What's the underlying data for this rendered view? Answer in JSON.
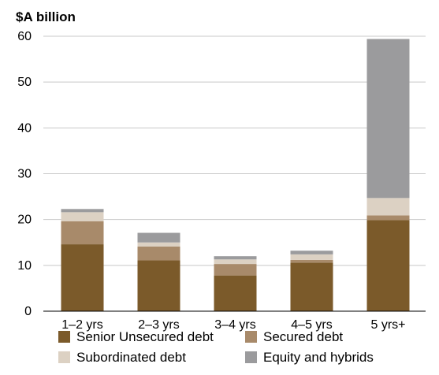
{
  "chart_data": {
    "type": "bar",
    "stacked": true,
    "unit_label": "$A billion",
    "title": "",
    "xlabel": "",
    "ylabel": "",
    "ylim": [
      0,
      60
    ],
    "yticks": [
      0,
      10,
      20,
      30,
      40,
      50,
      60
    ],
    "grid": true,
    "legend_position": "bottom",
    "categories": [
      "1–2 yrs",
      "2–3 yrs",
      "3–4 yrs",
      "4–5 yrs",
      "5 yrs+"
    ],
    "series": [
      {
        "name": "Senior Unsecured debt",
        "color": "#7b5a2a",
        "values": [
          14.6,
          11.1,
          7.8,
          10.6,
          19.9
        ]
      },
      {
        "name": "Secured debt",
        "color": "#a88a6a",
        "values": [
          5.0,
          3.0,
          2.5,
          0.6,
          1.0
        ]
      },
      {
        "name": "Subordinated debt",
        "color": "#dcd1c3",
        "values": [
          2.0,
          0.9,
          1.0,
          1.2,
          3.8
        ]
      },
      {
        "name": "Equity and hybrids",
        "color": "#9b9b9d",
        "values": [
          0.7,
          2.1,
          0.7,
          0.8,
          34.7
        ]
      }
    ]
  }
}
